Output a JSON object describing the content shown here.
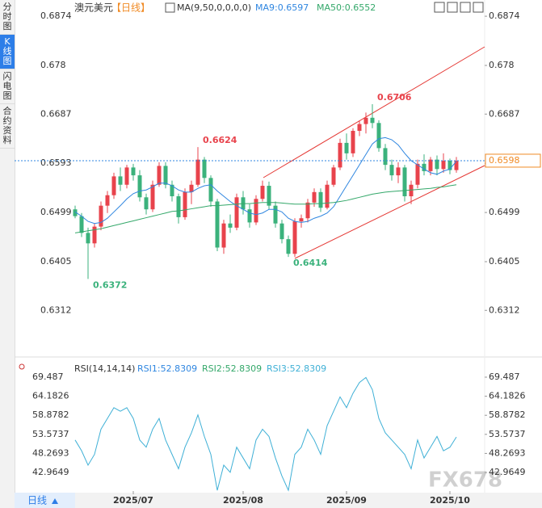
{
  "tabs": [
    "分时图",
    "K线图",
    "闪电图",
    "合约资料"
  ],
  "chart_data": {
    "type": "candlestick",
    "title": "澳元美元",
    "period": "【日线】",
    "ma_title": "MA(9,50,0,0,0,0)",
    "ma_legend": [
      "MA9:0.6597",
      "MA50:0.6552"
    ],
    "up_color": "#e8434c",
    "down_color": "#3bb27c",
    "open": [
      0.6505,
      0.6492,
      0.646,
      0.644,
      0.6472,
      0.6512,
      0.6532,
      0.6568,
      0.6552,
      0.6585,
      0.657,
      0.6528,
      0.6505,
      0.6552,
      0.6588,
      0.6552,
      0.653,
      0.649,
      0.6538,
      0.6552,
      0.66,
      0.6565,
      0.652,
      0.6432,
      0.6478,
      0.647,
      0.6528,
      0.6505,
      0.648,
      0.6525,
      0.655,
      0.6512,
      0.6478,
      0.6448,
      0.642,
      0.6482,
      0.6488,
      0.6518,
      0.6538,
      0.6508,
      0.6552,
      0.6585,
      0.6632,
      0.6612,
      0.6655,
      0.6668,
      0.668,
      0.667,
      0.6622,
      0.659,
      0.657,
      0.6585,
      0.653,
      0.6552,
      0.6592,
      0.6578,
      0.66,
      0.6582,
      0.6598,
      0.658
    ],
    "high": [
      0.6512,
      0.6498,
      0.647,
      0.6478,
      0.652,
      0.654,
      0.6575,
      0.6585,
      0.659,
      0.6592,
      0.658,
      0.6535,
      0.656,
      0.6595,
      0.6595,
      0.656,
      0.6535,
      0.6545,
      0.656,
      0.6624,
      0.6605,
      0.657,
      0.6525,
      0.6485,
      0.6495,
      0.6535,
      0.654,
      0.6515,
      0.6532,
      0.656,
      0.6558,
      0.652,
      0.6485,
      0.6455,
      0.6488,
      0.6495,
      0.6525,
      0.6545,
      0.6545,
      0.656,
      0.659,
      0.664,
      0.665,
      0.666,
      0.6675,
      0.669,
      0.6706,
      0.6675,
      0.663,
      0.66,
      0.6595,
      0.659,
      0.656,
      0.66,
      0.661,
      0.6605,
      0.6608,
      0.6612,
      0.6602,
      0.6605
    ],
    "low": [
      0.6488,
      0.6452,
      0.6372,
      0.6432,
      0.6465,
      0.6498,
      0.6525,
      0.654,
      0.6545,
      0.656,
      0.652,
      0.6495,
      0.65,
      0.6548,
      0.6545,
      0.652,
      0.6478,
      0.6485,
      0.6515,
      0.6548,
      0.6555,
      0.651,
      0.6425,
      0.642,
      0.646,
      0.6465,
      0.6495,
      0.647,
      0.6475,
      0.652,
      0.6505,
      0.647,
      0.644,
      0.6414,
      0.6414,
      0.647,
      0.648,
      0.651,
      0.65,
      0.6505,
      0.6548,
      0.658,
      0.66,
      0.6605,
      0.6645,
      0.665,
      0.666,
      0.6615,
      0.658,
      0.656,
      0.6555,
      0.652,
      0.6515,
      0.6545,
      0.657,
      0.657,
      0.657,
      0.6575,
      0.6572,
      0.6575
    ],
    "close": [
      0.6492,
      0.646,
      0.644,
      0.6472,
      0.6512,
      0.6532,
      0.6568,
      0.6552,
      0.6585,
      0.657,
      0.6528,
      0.6505,
      0.6552,
      0.6588,
      0.6552,
      0.653,
      0.649,
      0.6538,
      0.6552,
      0.66,
      0.6565,
      0.652,
      0.6432,
      0.6478,
      0.647,
      0.6528,
      0.6505,
      0.648,
      0.6525,
      0.655,
      0.6512,
      0.6478,
      0.6448,
      0.642,
      0.6482,
      0.6488,
      0.6518,
      0.6538,
      0.6508,
      0.6552,
      0.6585,
      0.6632,
      0.6612,
      0.6655,
      0.6668,
      0.668,
      0.667,
      0.6622,
      0.659,
      0.657,
      0.6585,
      0.653,
      0.6552,
      0.6592,
      0.6578,
      0.66,
      0.6582,
      0.6598,
      0.658,
      0.6598
    ],
    "series": [
      {
        "name": "MA9",
        "color": "#2f86e0",
        "values": [
          0.65,
          0.6492,
          0.6482,
          0.6478,
          0.648,
          0.6488,
          0.65,
          0.6512,
          0.6525,
          0.6535,
          0.654,
          0.6542,
          0.6548,
          0.6555,
          0.6555,
          0.655,
          0.6542,
          0.6538,
          0.6538,
          0.6545,
          0.655,
          0.6552,
          0.654,
          0.653,
          0.652,
          0.6512,
          0.6505,
          0.6498,
          0.6495,
          0.6498,
          0.6505,
          0.6505,
          0.65,
          0.6488,
          0.6482,
          0.648,
          0.6482,
          0.6488,
          0.6492,
          0.6498,
          0.651,
          0.653,
          0.655,
          0.657,
          0.659,
          0.661,
          0.663,
          0.664,
          0.6642,
          0.6638,
          0.6628,
          0.6612,
          0.6598,
          0.659,
          0.6582,
          0.6575,
          0.6572,
          0.6578,
          0.6582,
          0.6597
        ]
      },
      {
        "name": "MA50",
        "color": "#34a86a",
        "values": [
          0.646,
          0.6462,
          0.6464,
          0.6466,
          0.6468,
          0.6471,
          0.6474,
          0.6477,
          0.648,
          0.6483,
          0.6486,
          0.6489,
          0.6492,
          0.6495,
          0.6498,
          0.6501,
          0.6502,
          0.6504,
          0.6506,
          0.6508,
          0.651,
          0.6512,
          0.6512,
          0.6513,
          0.6514,
          0.6515,
          0.6516,
          0.6516,
          0.6517,
          0.6518,
          0.6518,
          0.6518,
          0.6517,
          0.6516,
          0.6515,
          0.6515,
          0.6515,
          0.6516,
          0.6516,
          0.6517,
          0.6518,
          0.652,
          0.6522,
          0.6525,
          0.6528,
          0.6531,
          0.6534,
          0.6536,
          0.6538,
          0.6539,
          0.654,
          0.6541,
          0.6542,
          0.6543,
          0.6544,
          0.6545,
          0.6547,
          0.6548,
          0.655,
          0.6552
        ]
      }
    ],
    "ylim": [
      0.6226,
      0.6905
    ],
    "yticks": [
      0.6874,
      0.678,
      0.6687,
      0.6593,
      0.6499,
      0.6405,
      0.6312
    ],
    "xticks": [
      {
        "value": 9,
        "label": "2025/07"
      },
      {
        "value": 26,
        "label": "2025/08"
      },
      {
        "value": 42,
        "label": "2025/09"
      },
      {
        "value": 58,
        "label": "2025/10"
      }
    ],
    "rsi": {
      "title": "RSI(14,14,14)",
      "legend": [
        "RSI1:52.8309",
        "RSI2:52.8309",
        "RSI3:52.8309"
      ],
      "color": "#3fb0d6",
      "values": [
        52,
        49,
        45,
        48,
        55,
        58,
        61,
        60,
        61,
        58,
        52,
        50,
        55,
        58,
        52,
        48,
        44,
        50,
        54,
        59,
        53,
        48,
        38,
        45,
        43,
        50,
        47,
        44,
        52,
        55,
        53,
        47,
        42,
        38,
        48,
        50,
        55,
        52,
        48,
        56,
        60,
        64,
        61,
        65,
        68,
        69.4,
        66,
        58,
        54,
        52,
        50,
        48,
        44,
        52,
        47,
        50,
        53,
        49,
        50,
        52.8309
      ],
      "ylim": [
        37.8,
        71.06
      ],
      "yticks": [
        69.487,
        64.1826,
        58.8782,
        53.5737,
        48.2693,
        42.9649
      ]
    },
    "period_tab": "日线",
    "watermark": "FX678"
  }
}
